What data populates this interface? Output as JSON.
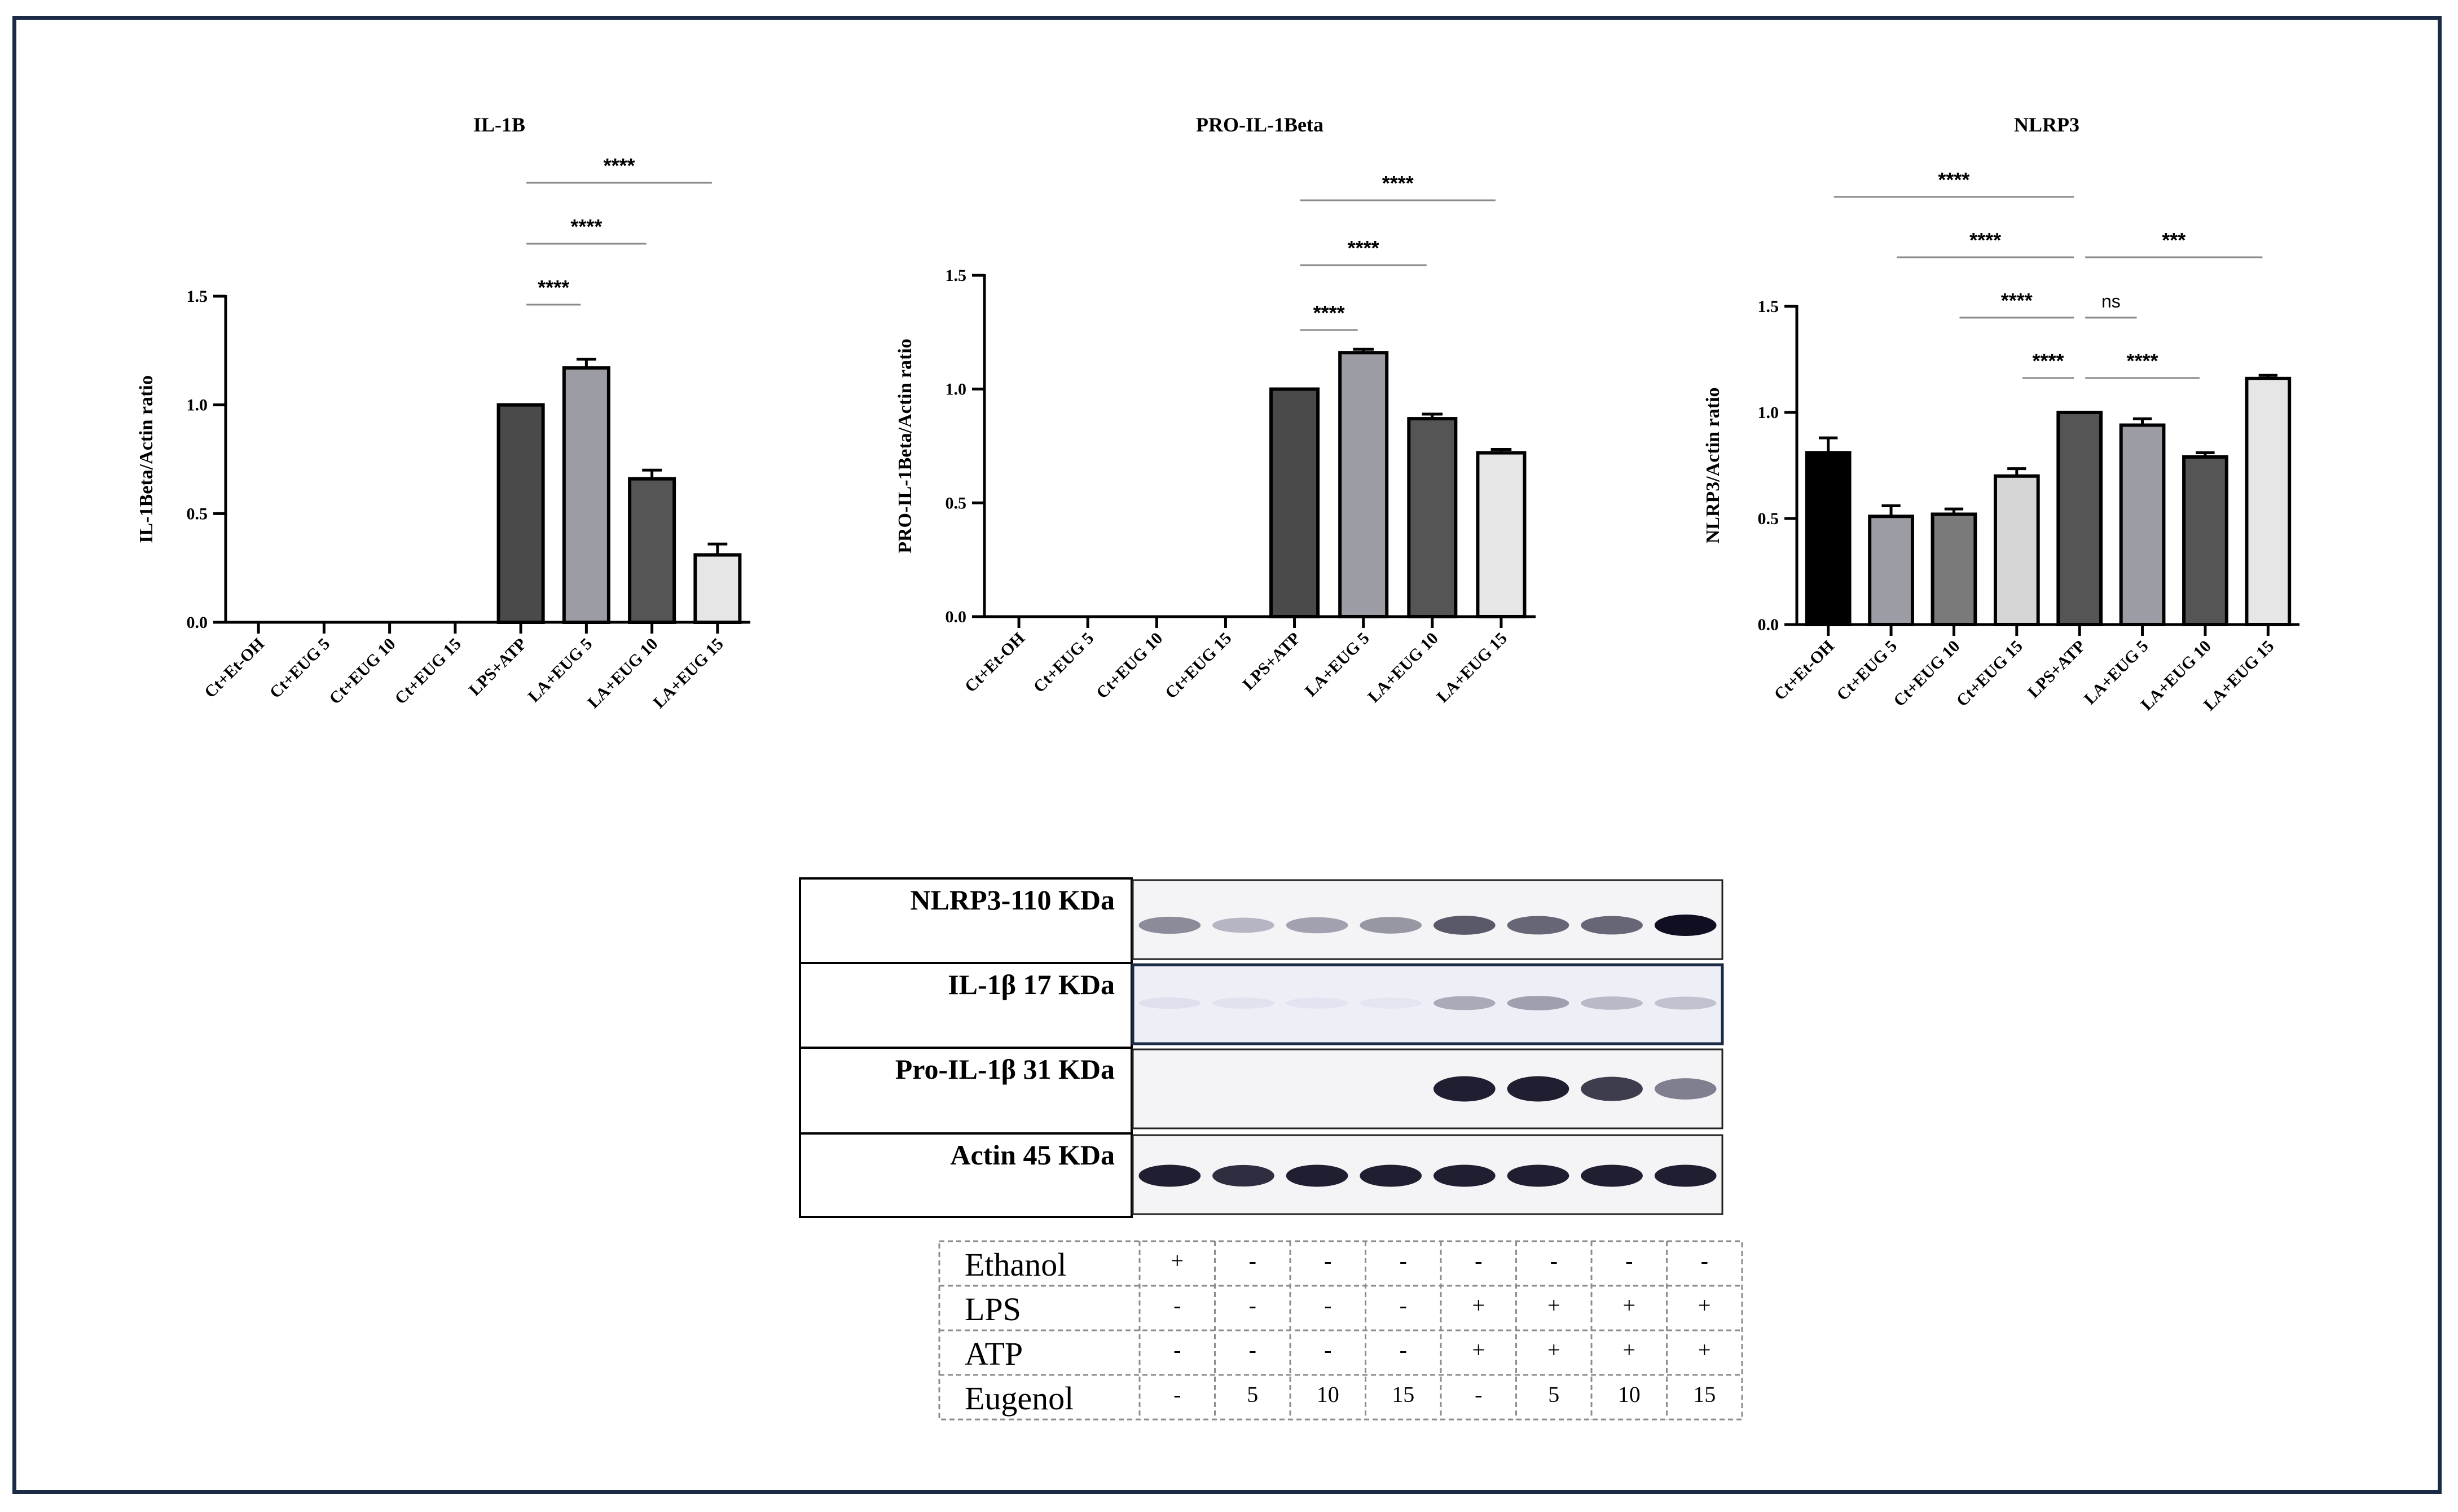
{
  "chart_data": [
    {
      "type": "bar",
      "title": "IL-1B",
      "ylabel": "IL-1Beta/Actin ratio",
      "ylim": [
        0,
        1.5
      ],
      "yticks": [
        "0.0",
        "0.5",
        "1.0",
        "1.5"
      ],
      "categories": [
        "Ct+Et-OH",
        "Ct+EUG 5",
        "Ct+EUG 10",
        "Ct+EUG 15",
        "LPS+ATP",
        "LA+EUG 5",
        "LA+EUG 10",
        "LA+EUG 15"
      ],
      "values": [
        0,
        0,
        0,
        0,
        1.0,
        1.17,
        0.66,
        0.31
      ],
      "errors": [
        0,
        0,
        0,
        0,
        0,
        0.04,
        0.04,
        0.05
      ],
      "colors": [
        "#4a4a4a",
        "#4a4a4a",
        "#4a4a4a",
        "#4a4a4a",
        "#4a4a4a",
        "#9c9ca4",
        "#555555",
        "#e6e6e6"
      ],
      "significance": [
        {
          "from": 4,
          "to": 5,
          "label": "****",
          "level": 0
        },
        {
          "from": 4,
          "to": 6,
          "label": "****",
          "level": 1
        },
        {
          "from": 4,
          "to": 7,
          "label": "****",
          "level": 2
        }
      ]
    },
    {
      "type": "bar",
      "title": "PRO-IL-1Beta",
      "ylabel": "PRO-IL-1Beta/Actin ratio",
      "ylim": [
        0,
        1.5
      ],
      "yticks": [
        "0.0",
        "0.5",
        "1.0",
        "1.5"
      ],
      "categories": [
        "Ct+Et-OH",
        "Ct+EUG 5",
        "Ct+EUG 10",
        "Ct+EUG 15",
        "LPS+ATP",
        "LA+EUG 5",
        "LA+EUG 10",
        "LA+EUG 15"
      ],
      "values": [
        0,
        0,
        0,
        0,
        1.0,
        1.16,
        0.87,
        0.72
      ],
      "errors": [
        0,
        0,
        0,
        0,
        0,
        0.015,
        0.02,
        0.015
      ],
      "colors": [
        "#4a4a4a",
        "#4a4a4a",
        "#4a4a4a",
        "#4a4a4a",
        "#4a4a4a",
        "#9c9ca4",
        "#555555",
        "#e6e6e6"
      ],
      "significance": [
        {
          "from": 4,
          "to": 5,
          "label": "****",
          "level": 0
        },
        {
          "from": 4,
          "to": 6,
          "label": "****",
          "level": 1
        },
        {
          "from": 4,
          "to": 7,
          "label": "****",
          "level": 2
        }
      ]
    },
    {
      "type": "bar",
      "title": "NLRP3",
      "ylabel": "NLRP3/Actin ratio",
      "ylim": [
        0,
        1.5
      ],
      "yticks": [
        "0.0",
        "0.5",
        "1.0",
        "1.5"
      ],
      "categories": [
        "Ct+Et-OH",
        "Ct+EUG 5",
        "Ct+EUG 10",
        "Ct+EUG 15",
        "LPS+ATP",
        "LA+EUG 5",
        "LA+EUG 10",
        "LA+EUG 15"
      ],
      "values": [
        0.81,
        0.51,
        0.52,
        0.7,
        1.0,
        0.94,
        0.79,
        1.16
      ],
      "errors": [
        0.07,
        0.05,
        0.025,
        0.035,
        0,
        0.03,
        0.02,
        0.015
      ],
      "colors": [
        "#000000",
        "#9c9ca4",
        "#7a7a7a",
        "#d6d6d6",
        "#555555",
        "#9c9ca4",
        "#555555",
        "#e6e6e6"
      ],
      "significance": [
        {
          "from": 3,
          "to": 4,
          "label": "****",
          "level": 0
        },
        {
          "from": 4,
          "to": 5,
          "label": "ns",
          "level": 1
        },
        {
          "from": 4,
          "to": 6,
          "label": "****",
          "level": 0
        },
        {
          "from": 2,
          "to": 4,
          "label": "****",
          "level": 1
        },
        {
          "from": 1,
          "to": 4,
          "label": "****",
          "level": 2
        },
        {
          "from": 4,
          "to": 7,
          "label": "***",
          "level": 2
        },
        {
          "from": 0,
          "to": 4,
          "label": "****",
          "level": 3
        }
      ]
    }
  ],
  "blot": {
    "labels": [
      "NLRP3-110 KDa",
      "IL-1β 17 KDa",
      "Pro-IL-1β 31 KDa",
      "Actin 45 KDa"
    ],
    "intensities": [
      [
        0.55,
        0.35,
        0.45,
        0.5,
        0.75,
        0.7,
        0.7,
        1.0
      ],
      [
        0.08,
        0.06,
        0.05,
        0.04,
        0.4,
        0.45,
        0.32,
        0.28
      ],
      [
        0.0,
        0.0,
        0.0,
        0.0,
        0.95,
        0.95,
        0.85,
        0.6
      ],
      [
        0.95,
        0.9,
        0.95,
        0.95,
        0.95,
        0.95,
        0.95,
        0.95
      ]
    ]
  },
  "treatment_table": {
    "rows": [
      {
        "label": "Ethanol",
        "cells": [
          "+",
          "-",
          "-",
          "-",
          "-",
          "-",
          "-",
          "-"
        ]
      },
      {
        "label": "LPS",
        "cells": [
          "-",
          "-",
          "-",
          "-",
          "+",
          "+",
          "+",
          "+"
        ]
      },
      {
        "label": "ATP",
        "cells": [
          "-",
          "-",
          "-",
          "-",
          "+",
          "+",
          "+",
          "+"
        ]
      },
      {
        "label": "Eugenol",
        "cells": [
          "-",
          "5",
          "10",
          "15",
          "-",
          "5",
          "10",
          "15"
        ]
      }
    ]
  }
}
